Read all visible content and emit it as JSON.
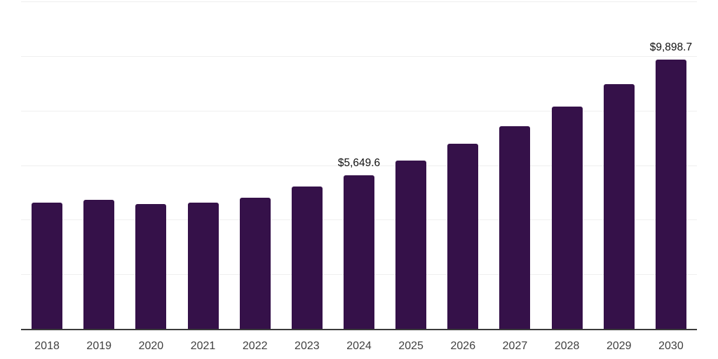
{
  "chart_data": {
    "type": "bar",
    "title": "",
    "xlabel": "",
    "ylabel": "",
    "categories": [
      "2018",
      "2019",
      "2020",
      "2021",
      "2022",
      "2023",
      "2024",
      "2025",
      "2026",
      "2027",
      "2028",
      "2029",
      "2030"
    ],
    "values": [
      4650,
      4760,
      4590,
      4640,
      4840,
      5230,
      5649.6,
      6200,
      6800,
      7450,
      8180,
      9000,
      9898.7
    ],
    "value_labels": [
      "",
      "",
      "",
      "",
      "",
      "",
      "$5,649.6",
      "",
      "",
      "",
      "",
      "",
      "$9,898.7"
    ],
    "ylim": [
      0,
      12000
    ],
    "gridline_step": 2000,
    "grid": true,
    "legend_position": "none",
    "colors": {
      "bar": "#351149",
      "gridline": "#efefef",
      "axis": "#3b3b3b",
      "tick_label": "#3f3f3f",
      "data_label": "#111111",
      "background": "#ffffff"
    }
  }
}
